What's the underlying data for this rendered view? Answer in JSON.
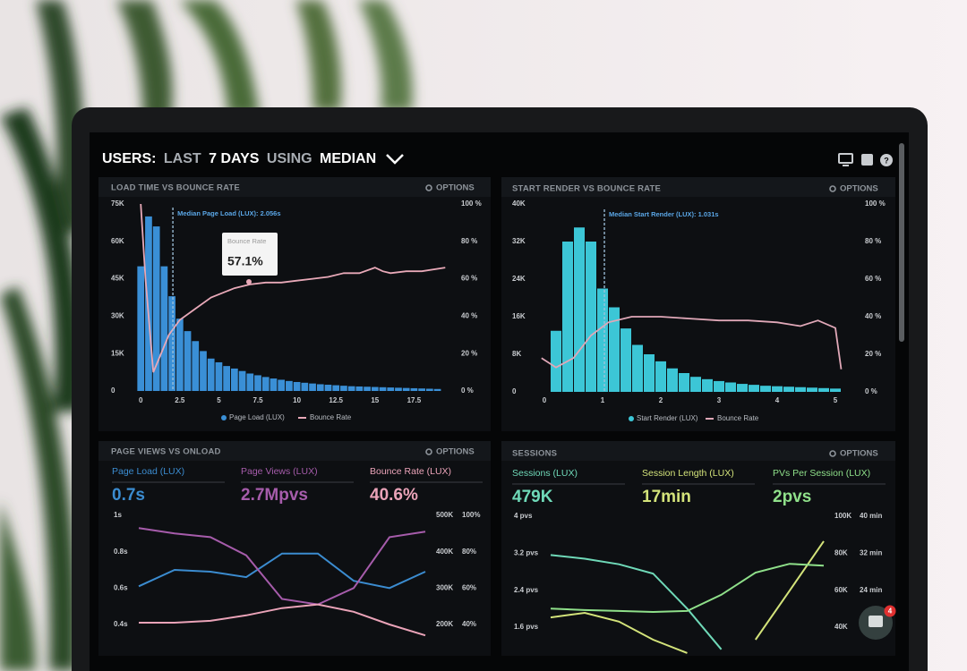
{
  "header": {
    "title": [
      "USERS:",
      "LAST",
      "7 DAYS",
      "USING",
      "MEDIAN"
    ]
  },
  "notification_count": 4,
  "chart_data": [
    {
      "type": "histogram",
      "title": "LOAD TIME VS BOUNCE RATE",
      "options": "OPTIONS",
      "median": {
        "value": 2.056,
        "label": "Median Page Load (LUX): 2.056s"
      },
      "tooltip": {
        "title": "Bounce Rate",
        "text": "57.1%"
      },
      "bins": [
        -0.25,
        0.25,
        0.75,
        1.25,
        1.75,
        2.25,
        2.75,
        3.25,
        3.75,
        4.25,
        4.75,
        5.25,
        5.75,
        6.25,
        6.75,
        7.25,
        7.75,
        8.25,
        8.75,
        9.25,
        9.75,
        10.25,
        10.75,
        11.25,
        11.75,
        12.25,
        12.75,
        13.25,
        13.75,
        14.25,
        14.75,
        15.25,
        15.75,
        16.25,
        16.75,
        17.25,
        17.75,
        18.25,
        18.75,
        19.25
      ],
      "series": [
        {
          "name": "Page Load (LUX)",
          "color": "#3a8fd6",
          "values": [
            50000,
            70000,
            66000,
            50000,
            38000,
            29000,
            24000,
            20000,
            16000,
            13000,
            11500,
            10000,
            9000,
            8000,
            7000,
            6300,
            5600,
            5000,
            4500,
            4000,
            3600,
            3300,
            3000,
            2700,
            2500,
            2300,
            2100,
            1900,
            1800,
            1700,
            1600,
            1500,
            1400,
            1300,
            1200,
            1100,
            1000,
            900,
            800
          ]
        },
        {
          "name": "Bounce Rate",
          "color": "#e8a9b8",
          "axis": "y2",
          "x": [
            0,
            0.3,
            0.8,
            1.2,
            1.8,
            2.5,
            3.5,
            4.5,
            6,
            7,
            8,
            9,
            10,
            11,
            12,
            13,
            14,
            15,
            15.5,
            16,
            17,
            18,
            19.5
          ],
          "values": [
            100,
            60,
            10,
            18,
            30,
            38,
            44,
            50,
            55,
            57,
            58,
            58,
            59,
            60,
            61,
            63,
            63,
            66,
            64,
            63,
            64,
            64,
            66
          ]
        }
      ],
      "xlim": [
        -0.3,
        20
      ],
      "xticks": [
        0,
        2.5,
        5,
        7.5,
        10,
        12.5,
        15,
        17.5
      ],
      "ylim": [
        0,
        75000
      ],
      "yticks": [
        0,
        {
          "value": 15000,
          "label": "15K"
        },
        {
          "value": 30000,
          "label": "30K"
        },
        {
          "value": 45000,
          "label": "45K"
        },
        {
          "value": 60000,
          "label": "60K"
        },
        {
          "value": 75000,
          "label": "75K"
        }
      ],
      "y2lim": [
        0,
        100
      ],
      "y2ticks": [
        {
          "value": 0,
          "label": "0 %"
        },
        {
          "value": 20,
          "label": "20 %"
        },
        {
          "value": 40,
          "label": "40 %"
        },
        {
          "value": 60,
          "label": "60 %"
        },
        {
          "value": 80,
          "label": "80 %"
        },
        {
          "value": 100,
          "label": "100 %"
        }
      ]
    },
    {
      "type": "histogram",
      "title": "START RENDER VS BOUNCE RATE",
      "options": "OPTIONS",
      "median": {
        "value": 1.031,
        "label": "Median Start Render (LUX): 1.031s"
      },
      "bins": [
        0.1,
        0.3,
        0.5,
        0.7,
        0.9,
        1.1,
        1.3,
        1.5,
        1.7,
        1.9,
        2.1,
        2.3,
        2.5,
        2.7,
        2.9,
        3.1,
        3.3,
        3.5,
        3.7,
        3.9,
        4.1,
        4.3,
        4.5,
        4.7,
        4.9,
        5.1
      ],
      "series": [
        {
          "name": "Start Render (LUX)",
          "color": "#3cc6d6",
          "values": [
            13000,
            32000,
            35000,
            32000,
            22000,
            18000,
            13500,
            10000,
            8000,
            6500,
            5000,
            4000,
            3200,
            2700,
            2300,
            2000,
            1700,
            1500,
            1300,
            1200,
            1100,
            1000,
            900,
            800,
            700
          ]
        },
        {
          "name": "Bounce Rate",
          "color": "#e0a8b8",
          "axis": "y2",
          "x": [
            -0.05,
            0.2,
            0.5,
            0.8,
            1.1,
            1.5,
            2,
            2.5,
            3,
            3.5,
            4,
            4.4,
            4.7,
            5,
            5.1
          ],
          "values": [
            18,
            13,
            18,
            30,
            37,
            40,
            40,
            39,
            38,
            38,
            37,
            35,
            38,
            34,
            12
          ]
        }
      ],
      "xlim": [
        -0.1,
        5.2
      ],
      "xticks": [
        0,
        1,
        2,
        3,
        4,
        5
      ],
      "ylim": [
        0,
        40000
      ],
      "yticks": [
        0,
        {
          "value": 8000,
          "label": "8K"
        },
        {
          "value": 16000,
          "label": "16K"
        },
        {
          "value": 24000,
          "label": "24K"
        },
        {
          "value": 32000,
          "label": "32K"
        },
        {
          "value": 40000,
          "label": "40K"
        }
      ],
      "y2lim": [
        0,
        100
      ],
      "y2ticks": [
        {
          "value": 0,
          "label": "0 %"
        },
        {
          "value": 20,
          "label": "20 %"
        },
        {
          "value": 40,
          "label": "40 %"
        },
        {
          "value": 60,
          "label": "60 %"
        },
        {
          "value": 80,
          "label": "80 %"
        },
        {
          "value": 100,
          "label": "100 %"
        }
      ]
    },
    {
      "type": "line",
      "title": "PAGE VIEWS VS ONLOAD",
      "options": "OPTIONS",
      "series": [
        {
          "name": "Page Load (LUX)",
          "kpi": "0.7s",
          "color": "#3b8cd0",
          "axis": "y",
          "values": [
            0.61,
            0.7,
            0.69,
            0.66,
            0.79,
            0.79,
            0.64,
            0.6,
            0.69
          ]
        },
        {
          "name": "Page Views (LUX)",
          "kpi": "2.7Mpvs",
          "color": "#a65cab",
          "axis": "y2",
          "values": [
            465000,
            450000,
            440000,
            390000,
            270000,
            255000,
            300000,
            440000,
            455000
          ]
        },
        {
          "name": "Bounce Rate (LUX)",
          "kpi": "40.6%",
          "color": "#eaa3b8",
          "axis": "y3",
          "values": [
            41,
            41,
            42,
            45,
            49,
            51,
            47,
            40,
            34
          ]
        }
      ],
      "ylim": [
        0.4,
        1
      ],
      "yticks": [
        {
          "value": 0.4,
          "label": "0.4s"
        },
        {
          "value": 0.6,
          "label": "0.6s"
        },
        {
          "value": 0.8,
          "label": "0.8s"
        },
        {
          "value": 1,
          "label": "1s"
        }
      ],
      "y2lim": [
        200000,
        500000
      ],
      "y2ticks": [
        {
          "value": 200000,
          "label": "200K"
        },
        {
          "value": 300000,
          "label": "300K"
        },
        {
          "value": 400000,
          "label": "400K"
        },
        {
          "value": 500000,
          "label": "500K"
        }
      ],
      "y3lim": [
        40,
        100
      ],
      "y3ticks": [
        {
          "value": 40,
          "label": "40%"
        },
        {
          "value": 60,
          "label": "60%"
        },
        {
          "value": 80,
          "label": "80%"
        },
        {
          "value": 100,
          "label": "100%"
        }
      ]
    },
    {
      "type": "line",
      "title": "SESSIONS",
      "options": "OPTIONS",
      "series": [
        {
          "name": "Sessions (LUX)",
          "kpi": "479K",
          "color": "#6fd9b8",
          "axis": "y2",
          "values": [
            79000,
            77000,
            74000,
            69000,
            50000,
            28000,
            null,
            null,
            null
          ]
        },
        {
          "name": "Session Length (LUX)",
          "kpi": "17min",
          "color": "#d3e37a",
          "axis": "y3",
          "values": [
            18.1,
            19.1,
            17.2,
            13.3,
            10.4,
            null,
            13.3,
            23.9,
            34.6
          ]
        },
        {
          "name": "PVs Per Session (LUX)",
          "kpi": "2pvs",
          "color": "#8fe08a",
          "axis": "y",
          "values": [
            2.0,
            1.97,
            1.95,
            1.93,
            1.95,
            2.3,
            2.78,
            2.97,
            2.93
          ]
        }
      ],
      "ylim": [
        1.6,
        4
      ],
      "yticks": [
        {
          "value": 1.6,
          "label": "1.6 pvs"
        },
        {
          "value": 2.4,
          "label": "2.4 pvs"
        },
        {
          "value": 3.2,
          "label": "3.2 pvs"
        },
        {
          "value": 4,
          "label": "4 pvs"
        }
      ],
      "y2lim": [
        40000,
        100000
      ],
      "y2ticks": [
        {
          "value": 40000,
          "label": "40K"
        },
        {
          "value": 60000,
          "label": "60K"
        },
        {
          "value": 80000,
          "label": "80K"
        },
        {
          "value": 100000,
          "label": "100K"
        }
      ],
      "y3lim": [
        16,
        40
      ],
      "y3ticks": [
        {
          "value": 16,
          "label": "16 min"
        },
        {
          "value": 24,
          "label": "24 min"
        },
        {
          "value": 32,
          "label": "32 min"
        },
        {
          "value": 40,
          "label": "40 min"
        }
      ]
    }
  ]
}
